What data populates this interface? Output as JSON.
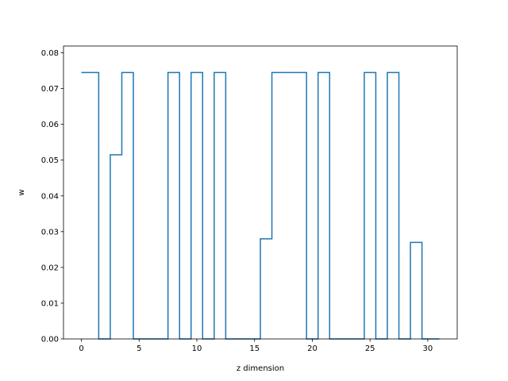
{
  "chart_data": {
    "type": "line",
    "drawstyle": "steps-mid",
    "title": "",
    "xlabel": "z dimension",
    "ylabel": "w",
    "xlim": [
      -1.55,
      32.55
    ],
    "ylim": [
      0,
      0.0819
    ],
    "xticks": [
      0,
      5,
      10,
      15,
      20,
      25,
      30
    ],
    "xtick_labels": [
      "0",
      "5",
      "10",
      "15",
      "20",
      "25",
      "30"
    ],
    "yticks": [
      0.0,
      0.01,
      0.02,
      0.03,
      0.04,
      0.05,
      0.06,
      0.07,
      0.08
    ],
    "ytick_labels": [
      "0.00",
      "0.01",
      "0.02",
      "0.03",
      "0.04",
      "0.05",
      "0.06",
      "0.07",
      "0.08"
    ],
    "grid": false,
    "legend": null,
    "series": [
      {
        "color": "#1f77b4",
        "x": [
          0,
          1,
          2,
          3,
          4,
          5,
          6,
          7,
          8,
          9,
          10,
          11,
          12,
          13,
          14,
          15,
          16,
          17,
          18,
          19,
          20,
          21,
          22,
          23,
          24,
          25,
          26,
          27,
          28,
          29,
          30,
          31
        ],
        "y": [
          0.0745,
          0.0745,
          0,
          0.0515,
          0.0745,
          0,
          0,
          0,
          0.0745,
          0,
          0.0745,
          0,
          0.0745,
          0,
          0,
          0,
          0.028,
          0.0745,
          0.0745,
          0.0745,
          0,
          0.0745,
          0,
          0,
          0,
          0.0745,
          0,
          0.0745,
          0,
          0.027,
          0,
          0
        ]
      }
    ]
  }
}
